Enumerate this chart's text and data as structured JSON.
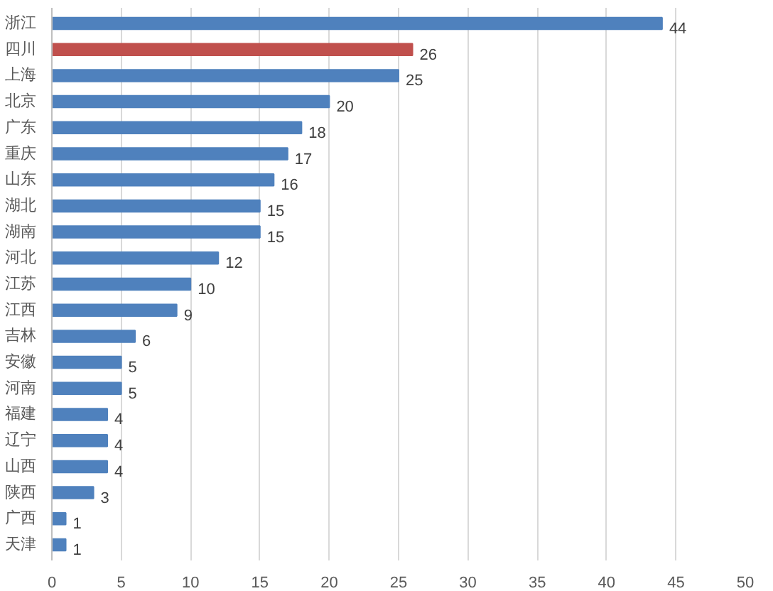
{
  "chart_data": {
    "type": "bar",
    "orientation": "horizontal",
    "categories": [
      "浙江",
      "四川",
      "上海",
      "北京",
      "广东",
      "重庆",
      "山东",
      "湖北",
      "湖南",
      "河北",
      "江苏",
      "江西",
      "吉林",
      "安徽",
      "河南",
      "福建",
      "辽宁",
      "山西",
      "陕西",
      "广西",
      "天津"
    ],
    "values": [
      44,
      26,
      25,
      20,
      18,
      17,
      16,
      15,
      15,
      12,
      10,
      9,
      6,
      5,
      5,
      4,
      4,
      4,
      3,
      1,
      1
    ],
    "colors": [
      "#4f81bd",
      "#c0504d",
      "#4f81bd",
      "#4f81bd",
      "#4f81bd",
      "#4f81bd",
      "#4f81bd",
      "#4f81bd",
      "#4f81bd",
      "#4f81bd",
      "#4f81bd",
      "#4f81bd",
      "#4f81bd",
      "#4f81bd",
      "#4f81bd",
      "#4f81bd",
      "#4f81bd",
      "#4f81bd",
      "#4f81bd",
      "#4f81bd",
      "#4f81bd"
    ],
    "xlim": [
      0,
      50
    ],
    "xticks": [
      0,
      5,
      10,
      15,
      20,
      25,
      30,
      35,
      40,
      45,
      50
    ],
    "data_labels": true,
    "grid": "x"
  }
}
